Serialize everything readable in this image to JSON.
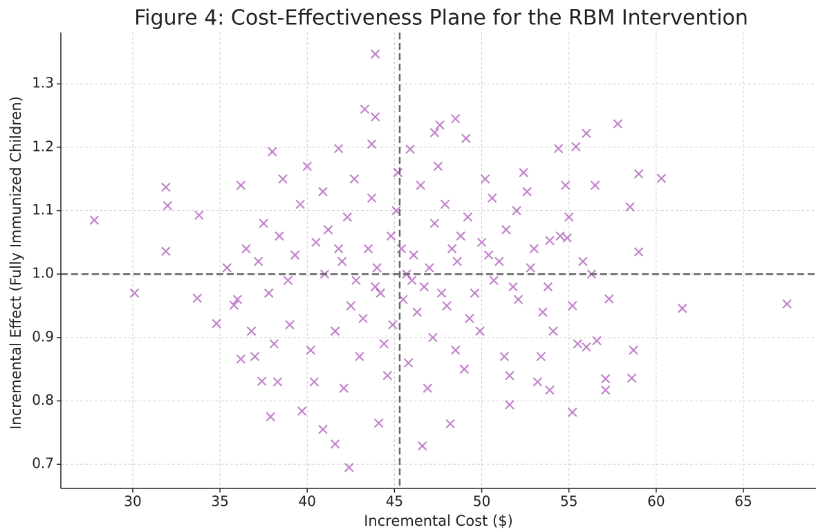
{
  "chart_data": {
    "type": "scatter",
    "title": "Figure 4: Cost-Effectiveness Plane for the RBM Intervention",
    "xlabel": "Incremental Cost ($)",
    "ylabel": "Incremental Effect (Fully Immunized Children)",
    "color": "#9932a8",
    "grid": true,
    "xlim": [
      25.88,
      69.16
    ],
    "ylim": [
      0.662,
      1.381
    ],
    "xticks": [
      30,
      35,
      40,
      45,
      50,
      55,
      60,
      65
    ],
    "yticks": [
      0.7,
      0.8,
      0.9,
      {
        "value": 1.0,
        "label": "1.0"
      },
      1.1,
      1.2,
      1.3
    ],
    "reference_lines": {
      "x": 45.3,
      "y": 1.0
    },
    "x": [
      27.8,
      30.1,
      31.9,
      32.0,
      31.9,
      33.7,
      33.8,
      43.9,
      43.3,
      43.9,
      42.4,
      46.6,
      41.6,
      67.5,
      61.5,
      60.3,
      59.0,
      59.0,
      57.8,
      56.0,
      55.2,
      58.7,
      58.6,
      57.1,
      57.1,
      58.5,
      37.9,
      37.4,
      38.0,
      47.3,
      48.5,
      49.1,
      47.6,
      45.9,
      43.7,
      41.8,
      55.4,
      54.4,
      48.2,
      44.1,
      40.9,
      39.7,
      53.9,
      51.6,
      35.8,
      34.8,
      36.2,
      53.9,
      54.9,
      57.3,
      56.6,
      56.0,
      40.5,
      41.2,
      42.0,
      42.8,
      43.5,
      44.2,
      44.8,
      45.5,
      46.1,
      46.7,
      47.3,
      48.0,
      48.6,
      49.3,
      50.0,
      50.7,
      51.4,
      52.1,
      52.8,
      53.5,
      39.0,
      39.6,
      40.2,
      40.9,
      41.6,
      42.3,
      43.0,
      43.7,
      44.4,
      45.1,
      45.8,
      46.5,
      47.2,
      47.9,
      48.5,
      49.2,
      49.9,
      50.6,
      51.3,
      52.0,
      37.2,
      37.8,
      38.4,
      38.9,
      36.5,
      36.0,
      35.4,
      36.8,
      37.5,
      38.1,
      53.0,
      53.8,
      54.5,
      55.2,
      55.8,
      54.1,
      55.0,
      56.3,
      53.4,
      52.6,
      41.0,
      42.5,
      44.0,
      45.7,
      47.0,
      48.3,
      49.6,
      51.0,
      43.2,
      46.3,
      40.0,
      42.7,
      45.2,
      47.5,
      50.2,
      52.4,
      38.6,
      36.2,
      54.8,
      56.5,
      40.4,
      42.1,
      44.6,
      46.9,
      49.0,
      51.6,
      38.3,
      53.2,
      37.0,
      55.5,
      39.3,
      41.8,
      43.9,
      45.4,
      46.0,
      47.7,
      48.8,
      50.4,
      51.8,
      44.9
    ],
    "values": [
      1.085,
      0.97,
      1.137,
      1.108,
      1.036,
      0.962,
      1.093,
      1.347,
      1.26,
      1.248,
      0.695,
      0.729,
      0.732,
      0.953,
      0.946,
      1.151,
      1.158,
      1.035,
      1.237,
      1.222,
      0.782,
      0.88,
      0.836,
      0.835,
      0.817,
      1.106,
      0.775,
      0.831,
      1.193,
      1.223,
      1.245,
      1.214,
      1.235,
      1.197,
      1.205,
      1.198,
      1.201,
      1.198,
      0.764,
      0.765,
      0.755,
      0.784,
      0.817,
      0.794,
      0.951,
      0.922,
      0.866,
      1.053,
      1.057,
      0.961,
      0.895,
      0.885,
      1.05,
      1.07,
      1.02,
      0.99,
      1.04,
      0.97,
      1.06,
      0.96,
      1.03,
      0.98,
      1.08,
      0.95,
      1.02,
      0.93,
      1.05,
      0.99,
      1.07,
      0.96,
      1.01,
      0.94,
      0.92,
      1.11,
      0.88,
      1.13,
      0.91,
      1.09,
      0.87,
      1.12,
      0.89,
      1.1,
      0.86,
      1.14,
      0.9,
      1.11,
      0.88,
      1.09,
      0.91,
      1.12,
      0.87,
      1.1,
      1.02,
      0.97,
      1.06,
      0.99,
      1.04,
      0.96,
      1.01,
      0.91,
      1.08,
      0.89,
      1.04,
      0.98,
      1.06,
      0.95,
      1.02,
      0.91,
      1.09,
      1.0,
      0.87,
      1.13,
      1.0,
      0.95,
      1.01,
      1.0,
      1.01,
      1.04,
      0.97,
      1.02,
      0.93,
      0.94,
      1.17,
      1.15,
      1.16,
      1.17,
      1.15,
      1.16,
      1.15,
      1.14,
      1.14,
      1.14,
      0.83,
      0.82,
      0.84,
      0.82,
      0.85,
      0.84,
      0.83,
      0.83,
      0.87,
      0.89,
      1.03,
      1.04,
      0.98,
      1.04,
      0.99,
      0.97,
      1.06,
      1.03,
      0.98,
      0.92
    ]
  }
}
